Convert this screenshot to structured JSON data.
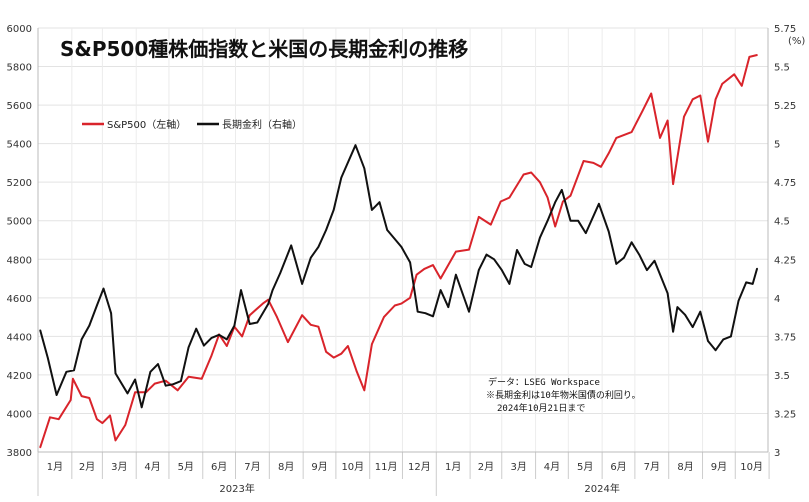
{
  "chart_data": {
    "type": "line",
    "title": "S&P500種株価指数と米国の長期金利の推移",
    "y_left": {
      "range": [
        3800,
        6000
      ],
      "ticks": [
        "6000",
        "5800",
        "5600",
        "5400",
        "5200",
        "5000",
        "4800",
        "4600",
        "4400",
        "4200",
        "4000",
        "3800"
      ]
    },
    "y_right": {
      "range": [
        3,
        5.75
      ],
      "unit": "(%)",
      "ticks": [
        "5.75",
        "5.5",
        "5.25",
        "5",
        "4.75",
        "4.5",
        "4.25",
        "4",
        "3.75",
        "3.5",
        "3.25",
        "3"
      ]
    },
    "months": [
      "1月",
      "2月",
      "3月",
      "4月",
      "5月",
      "6月",
      "7月",
      "8月",
      "9月",
      "10月",
      "11月",
      "12月",
      "1月",
      "2月",
      "3月",
      "4月",
      "5月",
      "6月",
      "7月",
      "8月",
      "9月",
      "10月"
    ],
    "years": [
      "2023年",
      "2024年"
    ],
    "note_lines": [
      "データ：LSEG Workspace",
      "※長期金利は10年物米国債の利回り。",
      "2024年10月21日まで"
    ],
    "grid": true,
    "legend_position": "top-left",
    "x_range": [
      "2023-01-01",
      "2024-10-31"
    ],
    "series": [
      {
        "name": "S&P500（左軸）",
        "color": "#d9242b",
        "axis": "left",
        "points": [
          [
            "2023-01-03",
            3824
          ],
          [
            "2023-01-12",
            3980
          ],
          [
            "2023-01-20",
            3970
          ],
          [
            "2023-01-31",
            4070
          ],
          [
            "2023-02-02",
            4180
          ],
          [
            "2023-02-10",
            4090
          ],
          [
            "2023-02-17",
            4080
          ],
          [
            "2023-02-24",
            3970
          ],
          [
            "2023-03-01",
            3950
          ],
          [
            "2023-03-08",
            3990
          ],
          [
            "2023-03-13",
            3860
          ],
          [
            "2023-03-22",
            3940
          ],
          [
            "2023-03-31",
            4110
          ],
          [
            "2023-04-10",
            4110
          ],
          [
            "2023-04-18",
            4155
          ],
          [
            "2023-04-28",
            4170
          ],
          [
            "2023-05-09",
            4120
          ],
          [
            "2023-05-19",
            4190
          ],
          [
            "2023-05-31",
            4180
          ],
          [
            "2023-06-09",
            4300
          ],
          [
            "2023-06-16",
            4410
          ],
          [
            "2023-06-23",
            4350
          ],
          [
            "2023-06-30",
            4450
          ],
          [
            "2023-07-07",
            4400
          ],
          [
            "2023-07-14",
            4510
          ],
          [
            "2023-07-26",
            4570
          ],
          [
            "2023-07-31",
            4590
          ],
          [
            "2023-08-08",
            4500
          ],
          [
            "2023-08-18",
            4370
          ],
          [
            "2023-08-31",
            4510
          ],
          [
            "2023-09-08",
            4460
          ],
          [
            "2023-09-15",
            4450
          ],
          [
            "2023-09-22",
            4320
          ],
          [
            "2023-09-29",
            4290
          ],
          [
            "2023-10-06",
            4310
          ],
          [
            "2023-10-12",
            4350
          ],
          [
            "2023-10-20",
            4220
          ],
          [
            "2023-10-27",
            4120
          ],
          [
            "2023-11-03",
            4360
          ],
          [
            "2023-11-14",
            4500
          ],
          [
            "2023-11-24",
            4560
          ],
          [
            "2023-11-30",
            4570
          ],
          [
            "2023-12-08",
            4600
          ],
          [
            "2023-12-14",
            4720
          ],
          [
            "2023-12-21",
            4750
          ],
          [
            "2023-12-29",
            4770
          ],
          [
            "2024-01-05",
            4700
          ],
          [
            "2024-01-19",
            4840
          ],
          [
            "2024-01-31",
            4850
          ],
          [
            "2024-02-09",
            5020
          ],
          [
            "2024-02-20",
            4980
          ],
          [
            "2024-02-29",
            5100
          ],
          [
            "2024-03-08",
            5120
          ],
          [
            "2024-03-21",
            5240
          ],
          [
            "2024-03-28",
            5250
          ],
          [
            "2024-04-05",
            5200
          ],
          [
            "2024-04-12",
            5120
          ],
          [
            "2024-04-19",
            4970
          ],
          [
            "2024-04-26",
            5100
          ],
          [
            "2024-05-03",
            5130
          ],
          [
            "2024-05-15",
            5310
          ],
          [
            "2024-05-24",
            5300
          ],
          [
            "2024-05-31",
            5280
          ],
          [
            "2024-06-07",
            5350
          ],
          [
            "2024-06-14",
            5430
          ],
          [
            "2024-06-28",
            5460
          ],
          [
            "2024-07-08",
            5570
          ],
          [
            "2024-07-16",
            5660
          ],
          [
            "2024-07-24",
            5430
          ],
          [
            "2024-07-31",
            5520
          ],
          [
            "2024-08-05",
            5190
          ],
          [
            "2024-08-15",
            5540
          ],
          [
            "2024-08-23",
            5630
          ],
          [
            "2024-08-30",
            5650
          ],
          [
            "2024-09-06",
            5410
          ],
          [
            "2024-09-13",
            5630
          ],
          [
            "2024-09-19",
            5710
          ],
          [
            "2024-09-30",
            5760
          ],
          [
            "2024-10-07",
            5700
          ],
          [
            "2024-10-14",
            5850
          ],
          [
            "2024-10-21",
            5860
          ]
        ]
      },
      {
        "name": "長期金利（右軸）",
        "color": "#111111",
        "axis": "right",
        "points": [
          [
            "2023-01-03",
            3.79
          ],
          [
            "2023-01-10",
            3.61
          ],
          [
            "2023-01-18",
            3.37
          ],
          [
            "2023-01-27",
            3.52
          ],
          [
            "2023-02-03",
            3.53
          ],
          [
            "2023-02-10",
            3.73
          ],
          [
            "2023-02-17",
            3.82
          ],
          [
            "2023-02-24",
            3.95
          ],
          [
            "2023-03-02",
            4.06
          ],
          [
            "2023-03-09",
            3.9
          ],
          [
            "2023-03-13",
            3.51
          ],
          [
            "2023-03-24",
            3.38
          ],
          [
            "2023-03-31",
            3.47
          ],
          [
            "2023-04-06",
            3.29
          ],
          [
            "2023-04-14",
            3.52
          ],
          [
            "2023-04-21",
            3.57
          ],
          [
            "2023-04-28",
            3.43
          ],
          [
            "2023-05-05",
            3.44
          ],
          [
            "2023-05-12",
            3.46
          ],
          [
            "2023-05-19",
            3.68
          ],
          [
            "2023-05-26",
            3.8
          ],
          [
            "2023-06-02",
            3.69
          ],
          [
            "2023-06-09",
            3.74
          ],
          [
            "2023-06-16",
            3.76
          ],
          [
            "2023-06-23",
            3.73
          ],
          [
            "2023-06-30",
            3.82
          ],
          [
            "2023-07-06",
            4.05
          ],
          [
            "2023-07-14",
            3.83
          ],
          [
            "2023-07-21",
            3.84
          ],
          [
            "2023-07-31",
            3.96
          ],
          [
            "2023-08-04",
            4.05
          ],
          [
            "2023-08-11",
            4.16
          ],
          [
            "2023-08-21",
            4.34
          ],
          [
            "2023-08-31",
            4.09
          ],
          [
            "2023-09-08",
            4.26
          ],
          [
            "2023-09-15",
            4.33
          ],
          [
            "2023-09-22",
            4.44
          ],
          [
            "2023-09-29",
            4.57
          ],
          [
            "2023-10-06",
            4.78
          ],
          [
            "2023-10-19",
            4.99
          ],
          [
            "2023-10-27",
            4.84
          ],
          [
            "2023-11-03",
            4.57
          ],
          [
            "2023-11-10",
            4.62
          ],
          [
            "2023-11-17",
            4.44
          ],
          [
            "2023-11-30",
            4.33
          ],
          [
            "2023-12-08",
            4.23
          ],
          [
            "2023-12-15",
            3.91
          ],
          [
            "2023-12-22",
            3.9
          ],
          [
            "2023-12-29",
            3.88
          ],
          [
            "2024-01-05",
            4.05
          ],
          [
            "2024-01-12",
            3.94
          ],
          [
            "2024-01-19",
            4.15
          ],
          [
            "2024-01-31",
            3.91
          ],
          [
            "2024-02-09",
            4.18
          ],
          [
            "2024-02-16",
            4.28
          ],
          [
            "2024-02-23",
            4.25
          ],
          [
            "2024-03-01",
            4.18
          ],
          [
            "2024-03-08",
            4.09
          ],
          [
            "2024-03-15",
            4.31
          ],
          [
            "2024-03-22",
            4.22
          ],
          [
            "2024-03-28",
            4.2
          ],
          [
            "2024-04-05",
            4.39
          ],
          [
            "2024-04-12",
            4.5
          ],
          [
            "2024-04-19",
            4.62
          ],
          [
            "2024-04-25",
            4.7
          ],
          [
            "2024-05-03",
            4.5
          ],
          [
            "2024-05-10",
            4.5
          ],
          [
            "2024-05-17",
            4.42
          ],
          [
            "2024-05-29",
            4.61
          ],
          [
            "2024-06-07",
            4.43
          ],
          [
            "2024-06-14",
            4.22
          ],
          [
            "2024-06-21",
            4.26
          ],
          [
            "2024-06-28",
            4.36
          ],
          [
            "2024-07-05",
            4.28
          ],
          [
            "2024-07-12",
            4.18
          ],
          [
            "2024-07-19",
            4.24
          ],
          [
            "2024-07-31",
            4.03
          ],
          [
            "2024-08-05",
            3.78
          ],
          [
            "2024-08-09",
            3.94
          ],
          [
            "2024-08-16",
            3.89
          ],
          [
            "2024-08-23",
            3.81
          ],
          [
            "2024-08-30",
            3.91
          ],
          [
            "2024-09-06",
            3.72
          ],
          [
            "2024-09-13",
            3.66
          ],
          [
            "2024-09-20",
            3.73
          ],
          [
            "2024-09-27",
            3.75
          ],
          [
            "2024-10-04",
            3.98
          ],
          [
            "2024-10-11",
            4.1
          ],
          [
            "2024-10-17",
            4.09
          ],
          [
            "2024-10-21",
            4.19
          ]
        ]
      }
    ]
  }
}
